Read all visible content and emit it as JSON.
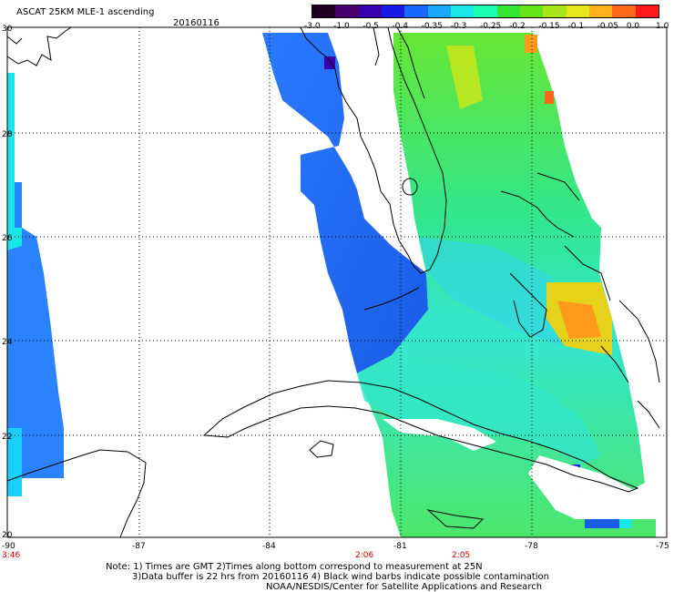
{
  "header": {
    "title": "ASCAT 25KM MLE-1 ascending",
    "date": "20160116"
  },
  "colorbar": {
    "labels": [
      "-3.0",
      "-1.0",
      "-0.5",
      "-0.4",
      "-0.35",
      "-0.3",
      "-0.25",
      "-0.2",
      "-0.15",
      "-0.1",
      "-0.05",
      "0.0",
      "1.0"
    ],
    "colors": [
      "#200020",
      "#4b0070",
      "#3a00b0",
      "#1a1ae6",
      "#1a66ff",
      "#1aa8ff",
      "#1ae6e6",
      "#1affb0",
      "#33e633",
      "#66e61a",
      "#a8e61a",
      "#e6e61a",
      "#ffb01a",
      "#ff661a",
      "#ff1a1a"
    ]
  },
  "map": {
    "lat_labels": [
      "30",
      "28",
      "26",
      "24",
      "22",
      "20"
    ],
    "lon_labels": [
      "-90",
      "-87",
      "-84",
      "-81",
      "-78",
      "-75"
    ],
    "time_labels": [
      "3:46",
      "2:06",
      "2:05"
    ]
  },
  "notes": {
    "line1": "Note: 1) Times are GMT 2)Times along bottom correspond to measurement at 25N",
    "line2": "3)Data buffer is 22 hrs from 20160116 4) Black wind barbs indicate possible contamination",
    "line3": "NOAA/NESDIS/Center for Satellite Applications and Research"
  },
  "swaths": {
    "west_level": "-0.4",
    "east_level": "-0.2"
  }
}
